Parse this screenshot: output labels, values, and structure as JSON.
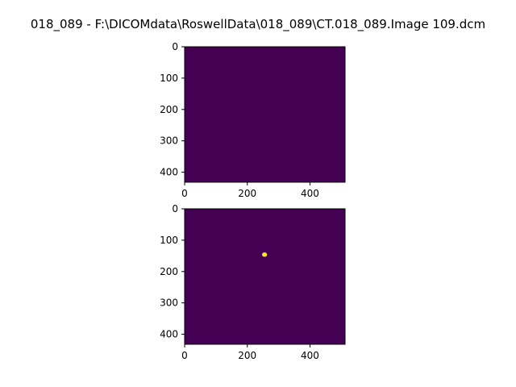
{
  "title": "018_089 - F:\\DICOMdata\\RoswellData\\018_089\\CT.018_089.Image 109.dcm",
  "colors": {
    "background_value": "#440154",
    "highlight_value": "#fde725"
  },
  "chart_data": [
    {
      "type": "heatmap",
      "colormap": "viridis",
      "x_ticks": [
        0,
        200,
        400
      ],
      "y_ticks": [
        0,
        100,
        200,
        300,
        400
      ],
      "xlim": [
        0,
        512
      ],
      "ylim": [
        432,
        0
      ],
      "blobs": []
    },
    {
      "type": "heatmap",
      "colormap": "viridis",
      "x_ticks": [
        0,
        200,
        400
      ],
      "y_ticks": [
        0,
        100,
        200,
        300,
        400
      ],
      "xlim": [
        0,
        512
      ],
      "ylim": [
        432,
        0
      ],
      "blobs": [
        {
          "x": 255,
          "y": 146,
          "rx": 8,
          "ry": 7
        }
      ]
    }
  ]
}
